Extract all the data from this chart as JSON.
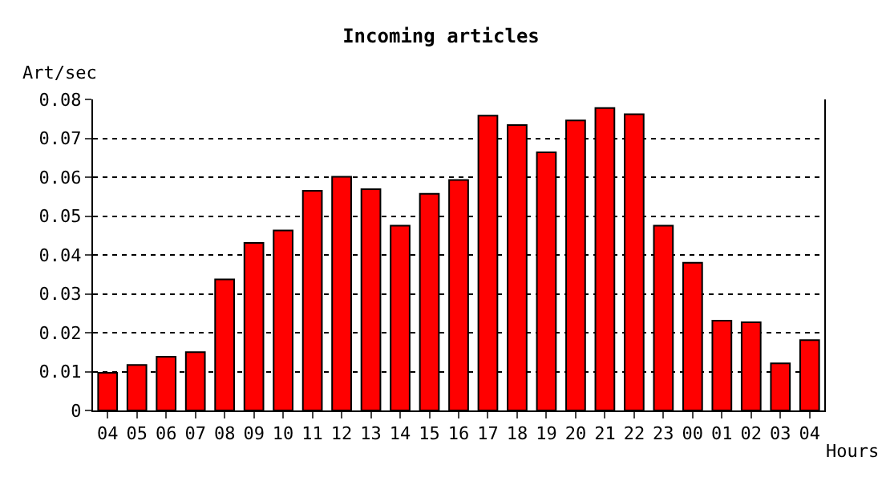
{
  "chart_data": {
    "type": "bar",
    "title": "Incoming articles",
    "ylabel": "Art/sec",
    "xlabel": "Hours",
    "categories": [
      "04",
      "05",
      "06",
      "07",
      "08",
      "09",
      "10",
      "11",
      "12",
      "13",
      "14",
      "15",
      "16",
      "17",
      "18",
      "19",
      "20",
      "21",
      "22",
      "23",
      "00",
      "01",
      "02",
      "03",
      "04"
    ],
    "values": [
      0.0097,
      0.0117,
      0.0138,
      0.015,
      0.0337,
      0.0431,
      0.0463,
      0.0565,
      0.0601,
      0.0569,
      0.0475,
      0.0557,
      0.0593,
      0.0758,
      0.0734,
      0.0664,
      0.0746,
      0.0778,
      0.0762,
      0.0475,
      0.038,
      0.0231,
      0.0227,
      0.0121,
      0.0181
    ],
    "color": "#ff0000",
    "ylim": [
      0,
      0.08
    ],
    "yticks": [
      0,
      0.01,
      0.02,
      0.03,
      0.04,
      0.05,
      0.06,
      0.07,
      0.08
    ],
    "grid": "y",
    "legend": false
  }
}
